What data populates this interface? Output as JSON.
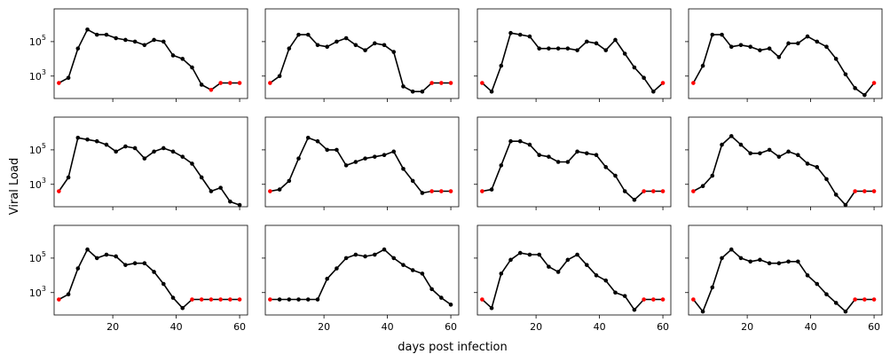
{
  "figure": {
    "xlabel": "days post infection",
    "ylabel": "Viral Load"
  },
  "axis_labels": {
    "y_ticks": [
      "10",
      "10"
    ],
    "y_tick_exponents": [
      "5",
      "3"
    ],
    "x_ticks": [
      "20",
      "40",
      "60"
    ]
  },
  "colors": {
    "line": "#000000",
    "observed_point": "#000000",
    "censored_point": "#ff0000",
    "axes": "#000000",
    "background": "#ffffff"
  },
  "chart_data": [
    {
      "type": "line",
      "panel": [
        1,
        1
      ],
      "xlim": [
        1.5,
        62.5
      ],
      "ylim": [
        1.7,
        6.9
      ],
      "yscale": "log",
      "x": [
        3,
        6,
        9,
        12,
        15,
        18,
        21,
        24,
        27,
        30,
        33,
        36,
        39,
        42,
        45,
        48,
        51,
        54,
        57,
        60
      ],
      "log10_y": [
        2.6,
        2.9,
        4.6,
        5.7,
        5.4,
        5.4,
        5.2,
        5.1,
        5.0,
        4.8,
        5.1,
        5.0,
        4.2,
        4.0,
        3.5,
        2.5,
        2.2,
        2.6,
        2.6,
        2.6
      ],
      "censored_from_index": 16
    },
    {
      "type": "line",
      "panel": [
        1,
        2
      ],
      "xlim": [
        1.5,
        62.5
      ],
      "ylim": [
        1.7,
        6.9
      ],
      "yscale": "log",
      "x": [
        3,
        6,
        9,
        12,
        15,
        18,
        21,
        24,
        27,
        30,
        33,
        36,
        39,
        42,
        45,
        48,
        51,
        54,
        57,
        60
      ],
      "log10_y": [
        2.6,
        3.0,
        4.6,
        5.4,
        5.4,
        4.8,
        4.7,
        5.0,
        5.2,
        4.8,
        4.5,
        4.9,
        4.8,
        4.4,
        2.4,
        2.1,
        2.1,
        2.6,
        2.6,
        2.6
      ],
      "censored_from_index": 17
    },
    {
      "type": "line",
      "panel": [
        1,
        3
      ],
      "xlim": [
        1.5,
        62.5
      ],
      "ylim": [
        1.7,
        6.9
      ],
      "yscale": "log",
      "x": [
        3,
        6,
        9,
        12,
        15,
        18,
        21,
        24,
        27,
        30,
        33,
        36,
        39,
        42,
        45,
        48,
        51,
        54,
        57,
        60
      ],
      "log10_y": [
        2.6,
        2.1,
        3.6,
        5.5,
        5.4,
        5.3,
        4.6,
        4.6,
        4.6,
        4.6,
        4.5,
        5.0,
        4.9,
        4.5,
        5.1,
        4.3,
        3.5,
        2.9,
        2.1,
        2.6
      ],
      "censored_from_index": 19
    },
    {
      "type": "line",
      "panel": [
        1,
        4
      ],
      "xlim": [
        1.5,
        62.5
      ],
      "ylim": [
        1.7,
        6.9
      ],
      "yscale": "log",
      "x": [
        3,
        6,
        9,
        12,
        15,
        18,
        21,
        24,
        27,
        30,
        33,
        36,
        39,
        42,
        45,
        48,
        51,
        54,
        57,
        60
      ],
      "log10_y": [
        2.6,
        3.6,
        5.4,
        5.4,
        4.7,
        4.8,
        4.7,
        4.5,
        4.6,
        4.1,
        4.9,
        4.9,
        5.3,
        5.0,
        4.7,
        4.0,
        3.1,
        2.3,
        1.9,
        2.6
      ],
      "censored_from_index": 19
    },
    {
      "type": "line",
      "panel": [
        2,
        1
      ],
      "xlim": [
        1.5,
        62.5
      ],
      "ylim": [
        1.7,
        6.9
      ],
      "yscale": "log",
      "x": [
        3,
        6,
        9,
        12,
        15,
        18,
        21,
        24,
        27,
        30,
        33,
        36,
        39,
        42,
        45,
        48,
        51,
        54,
        57,
        60
      ],
      "log10_y": [
        2.6,
        3.4,
        5.7,
        5.6,
        5.5,
        5.3,
        4.9,
        5.2,
        5.1,
        4.5,
        4.9,
        5.1,
        4.9,
        4.6,
        4.2,
        3.4,
        2.6,
        2.8,
        2.0,
        1.8
      ],
      "censored_from_index": null
    },
    {
      "type": "line",
      "panel": [
        2,
        2
      ],
      "xlim": [
        1.5,
        62.5
      ],
      "ylim": [
        1.7,
        6.9
      ],
      "yscale": "log",
      "x": [
        3,
        6,
        9,
        12,
        15,
        18,
        21,
        24,
        27,
        30,
        33,
        36,
        39,
        42,
        45,
        48,
        51,
        54,
        57,
        60
      ],
      "log10_y": [
        2.6,
        2.7,
        3.2,
        4.5,
        5.7,
        5.5,
        5.0,
        5.0,
        4.1,
        4.3,
        4.5,
        4.6,
        4.7,
        4.9,
        3.9,
        3.2,
        2.5,
        2.6,
        2.6,
        2.6
      ],
      "censored_from_index": 17
    },
    {
      "type": "line",
      "panel": [
        2,
        3
      ],
      "xlim": [
        1.5,
        62.5
      ],
      "ylim": [
        1.7,
        6.9
      ],
      "yscale": "log",
      "x": [
        3,
        6,
        9,
        12,
        15,
        18,
        21,
        24,
        27,
        30,
        33,
        36,
        39,
        42,
        45,
        48,
        51,
        54,
        57,
        60
      ],
      "log10_y": [
        2.6,
        2.7,
        4.1,
        5.5,
        5.5,
        5.3,
        4.7,
        4.6,
        4.3,
        4.3,
        4.9,
        4.8,
        4.7,
        4.0,
        3.5,
        2.6,
        2.1,
        2.6,
        2.6,
        2.6
      ],
      "censored_from_index": 17
    },
    {
      "type": "line",
      "panel": [
        2,
        4
      ],
      "xlim": [
        1.5,
        62.5
      ],
      "ylim": [
        1.7,
        6.9
      ],
      "yscale": "log",
      "x": [
        3,
        6,
        9,
        12,
        15,
        18,
        21,
        24,
        27,
        30,
        33,
        36,
        39,
        42,
        45,
        48,
        51,
        54,
        57,
        60
      ],
      "log10_y": [
        2.6,
        2.9,
        3.5,
        5.3,
        5.8,
        5.3,
        4.8,
        4.8,
        5.0,
        4.6,
        4.9,
        4.7,
        4.2,
        4.0,
        3.3,
        2.4,
        1.8,
        2.6,
        2.6,
        2.6
      ],
      "censored_from_index": 17
    },
    {
      "type": "line",
      "panel": [
        3,
        1
      ],
      "xlim": [
        1.5,
        62.5
      ],
      "ylim": [
        1.7,
        6.9
      ],
      "yscale": "log",
      "x": [
        3,
        6,
        9,
        12,
        15,
        18,
        21,
        24,
        27,
        30,
        33,
        36,
        39,
        42,
        45,
        48,
        51,
        54,
        57,
        60
      ],
      "log10_y": [
        2.6,
        2.9,
        4.4,
        5.5,
        5.0,
        5.2,
        5.1,
        4.6,
        4.7,
        4.7,
        4.2,
        3.5,
        2.7,
        2.1,
        2.6,
        2.6,
        2.6,
        2.6,
        2.6,
        2.6
      ],
      "censored_from_index": 14
    },
    {
      "type": "line",
      "panel": [
        3,
        2
      ],
      "xlim": [
        1.5,
        62.5
      ],
      "ylim": [
        1.7,
        6.9
      ],
      "yscale": "log",
      "x": [
        3,
        6,
        9,
        12,
        15,
        18,
        21,
        24,
        27,
        30,
        33,
        36,
        39,
        42,
        45,
        48,
        51,
        54,
        57,
        60
      ],
      "log10_y": [
        2.6,
        2.6,
        2.6,
        2.6,
        2.6,
        2.6,
        3.8,
        4.4,
        5.0,
        5.2,
        5.1,
        5.2,
        5.5,
        5.0,
        4.6,
        4.3,
        4.1,
        3.2,
        2.7,
        2.3
      ],
      "censored_from_index": null
    },
    {
      "type": "line",
      "panel": [
        3,
        3
      ],
      "xlim": [
        1.5,
        62.5
      ],
      "ylim": [
        1.7,
        6.9
      ],
      "yscale": "log",
      "x": [
        3,
        6,
        9,
        12,
        15,
        18,
        21,
        24,
        27,
        30,
        33,
        36,
        39,
        42,
        45,
        48,
        51,
        54,
        57,
        60
      ],
      "log10_y": [
        2.6,
        2.1,
        4.1,
        4.9,
        5.3,
        5.2,
        5.2,
        4.5,
        4.2,
        4.9,
        5.2,
        4.6,
        4.0,
        3.7,
        3.0,
        2.8,
        2.0,
        2.6,
        2.6,
        2.6
      ],
      "censored_from_index": 17
    },
    {
      "type": "line",
      "panel": [
        3,
        4
      ],
      "xlim": [
        1.5,
        62.5
      ],
      "ylim": [
        1.7,
        6.9
      ],
      "yscale": "log",
      "x": [
        3,
        6,
        9,
        12,
        15,
        18,
        21,
        24,
        27,
        30,
        33,
        36,
        39,
        42,
        45,
        48,
        51,
        54,
        57,
        60
      ],
      "log10_y": [
        2.6,
        1.9,
        3.3,
        5.0,
        5.5,
        5.0,
        4.8,
        4.9,
        4.7,
        4.7,
        4.8,
        4.8,
        4.0,
        3.5,
        2.9,
        2.4,
        1.9,
        2.6,
        2.6,
        2.6
      ],
      "censored_from_index": 17
    }
  ]
}
